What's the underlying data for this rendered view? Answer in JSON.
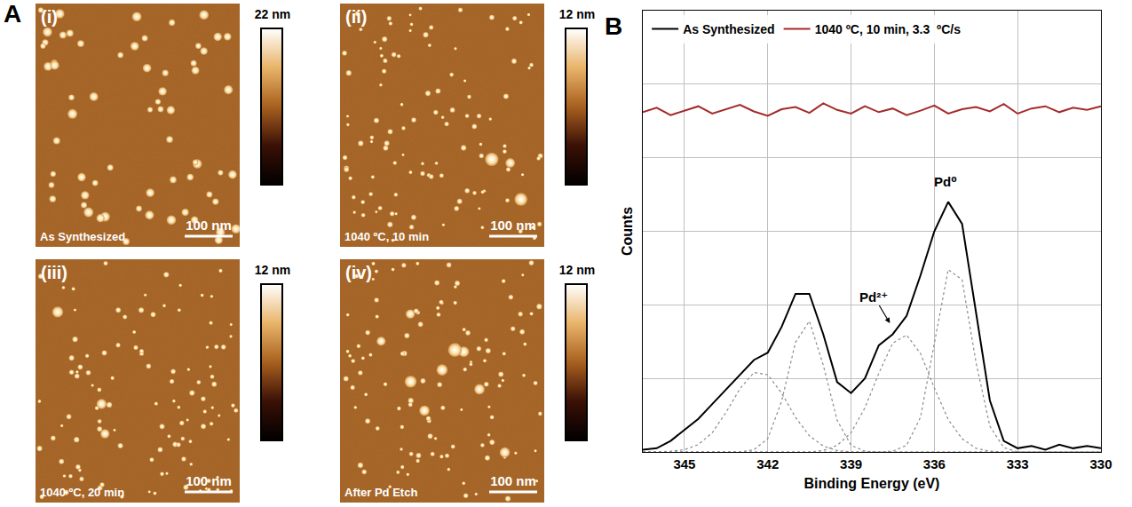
{
  "panel_a": {
    "label": "A",
    "images": [
      {
        "tag": "(i)",
        "caption": "As Synthesized",
        "colorbar_label": "22 nm",
        "scale_bar": "100 nm"
      },
      {
        "tag": "(ii)",
        "caption": "1040 ºC, 10 min",
        "colorbar_label": "12 nm",
        "scale_bar": "100 nm"
      },
      {
        "tag": "(iii)",
        "caption": "1040 ºC, 20 min",
        "colorbar_label": "12 nm",
        "scale_bar": "100 nm"
      },
      {
        "tag": "(iv)",
        "caption": "After Pd Etch",
        "colorbar_label": "12 nm",
        "scale_bar": "100 nm"
      }
    ]
  },
  "chart_data": {
    "label": "B",
    "type": "line",
    "x_label": "Binding Energy (eV)",
    "y_label": "Counts",
    "x": [
      346.5,
      346,
      345.5,
      345,
      344.5,
      344,
      343.5,
      343,
      342.5,
      342,
      341.5,
      341,
      340.5,
      340,
      339.5,
      339,
      338.5,
      338,
      337.5,
      337,
      336.5,
      336,
      335.5,
      335,
      334.5,
      334,
      333.5,
      333,
      332.5,
      332,
      331.5,
      331,
      330.5,
      330
    ],
    "xlim": [
      346.5,
      330
    ],
    "xticks": [
      345,
      342,
      339,
      336,
      333,
      330
    ],
    "ylim": [
      0,
      6
    ],
    "yticks": [
      0,
      1,
      2,
      3,
      4,
      5,
      6
    ],
    "tick_labels": "x",
    "grid": true,
    "legend": "upper left",
    "series": [
      {
        "color": "#8c8c8c",
        "line_style": "dot",
        "values": [
          0,
          0,
          0.01,
          0.03,
          0.1,
          0.26,
          0.54,
          0.86,
          1.08,
          1.05,
          0.8,
          0.47,
          0.22,
          0.08,
          0.02,
          0,
          0,
          0,
          0,
          0,
          0,
          0,
          0,
          0,
          0,
          0,
          0,
          0,
          0,
          0,
          0,
          0,
          0,
          0
        ]
      },
      {
        "color": "#8c8c8c",
        "line_style": "dot",
        "values": [
          0,
          0,
          0,
          0,
          0,
          0,
          0,
          0,
          0.03,
          0.18,
          0.69,
          1.49,
          1.78,
          1.18,
          0.43,
          0.09,
          0.01,
          0,
          0,
          0,
          0,
          0,
          0,
          0,
          0,
          0,
          0,
          0,
          0,
          0,
          0,
          0,
          0,
          0
        ]
      },
      {
        "color": "#8c8c8c",
        "line_style": "dot",
        "values": [
          0,
          0,
          0,
          0,
          0,
          0,
          0,
          0,
          0,
          0,
          0,
          0,
          0,
          0.02,
          0.09,
          0.26,
          0.6,
          1.07,
          1.48,
          1.59,
          1.34,
          0.87,
          0.44,
          0.18,
          0.05,
          0.01,
          0,
          0,
          0,
          0,
          0,
          0,
          0,
          0
        ]
      },
      {
        "color": "#8c8c8c",
        "line_style": "dot",
        "values": [
          0,
          0,
          0,
          0,
          0,
          0,
          0,
          0,
          0,
          0,
          0,
          0,
          0,
          0,
          0,
          0,
          0,
          0,
          0.01,
          0.09,
          0.47,
          1.46,
          2.48,
          2.34,
          1.22,
          0.35,
          0.06,
          0,
          0,
          0,
          0,
          0,
          0,
          0
        ]
      },
      {
        "name": "As Synthesized",
        "color": "#000000",
        "values": [
          0.03,
          0.05,
          0.15,
          0.3,
          0.45,
          0.65,
          0.85,
          1.05,
          1.25,
          1.35,
          1.7,
          2.15,
          2.15,
          1.6,
          0.95,
          0.8,
          1.0,
          1.45,
          1.6,
          1.85,
          2.4,
          3.0,
          3.4,
          3.1,
          1.9,
          0.7,
          0.15,
          0.05,
          0.08,
          0.03,
          0.1,
          0.05,
          0.08,
          0.05
        ]
      },
      {
        "name": "1040 ºC, 10 min, 3.3  ºC/s",
        "color": "#a52a2a",
        "values": [
          4.62,
          4.68,
          4.58,
          4.64,
          4.7,
          4.6,
          4.66,
          4.72,
          4.63,
          4.57,
          4.66,
          4.69,
          4.61,
          4.74,
          4.65,
          4.6,
          4.7,
          4.62,
          4.67,
          4.58,
          4.64,
          4.71,
          4.6,
          4.66,
          4.69,
          4.63,
          4.73,
          4.6,
          4.67,
          4.7,
          4.62,
          4.68,
          4.65,
          4.7
        ]
      }
    ],
    "annotations": [
      {
        "text": "Pd⁰",
        "x": 335.6,
        "y": 3.55
      },
      {
        "text": "Pd²⁺",
        "x": 337.6,
        "y": 1.75
      }
    ]
  }
}
